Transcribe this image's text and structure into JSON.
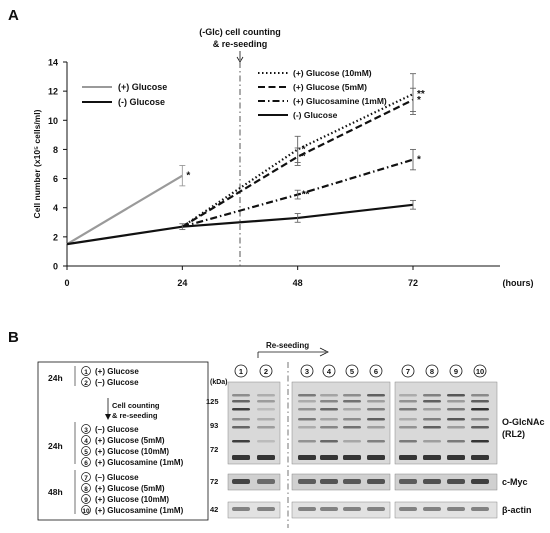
{
  "panel_a": {
    "label": "A",
    "annotation": {
      "line1": "(-Glc) cell counting",
      "line2": "& re-seeding"
    }
  },
  "chart_data": {
    "type": "line",
    "ylabel": "Cell number (x10⁵ cells/ml)",
    "x_unit": "(hours)",
    "x": [
      0,
      24,
      48,
      72
    ],
    "x_ticks": [
      "0",
      "24",
      "48",
      "72"
    ],
    "ylim": [
      0,
      14
    ],
    "y_ticks": [
      0,
      2,
      4,
      6,
      8,
      10,
      12,
      14
    ],
    "grid": false,
    "legend_left": [
      {
        "name": "(+) Glucose",
        "color": "#9a9a9a",
        "dash": "solid"
      },
      {
        "name": "(-) Glucose",
        "color": "#111111",
        "dash": "solid"
      }
    ],
    "legend_right": [
      {
        "name": "(+) Glucose (10mM)",
        "dash": "dot"
      },
      {
        "name": "(+) Glucose (5mM)",
        "dash": "dash"
      },
      {
        "name": "(+) Glucosamine (1mM)",
        "dash": "dashdot"
      },
      {
        "name": "(-) Glucose",
        "dash": "solid"
      }
    ],
    "series": [
      {
        "name": "(+) Glucose",
        "color": "#9a9a9a",
        "dash": "solid",
        "x": [
          0,
          24
        ],
        "y": [
          1.5,
          6.2
        ],
        "err": [
          0,
          0.7
        ],
        "sig": [
          "",
          "*"
        ]
      },
      {
        "name": "(+) Glucose (10mM)",
        "color": "#111111",
        "dash": "dot",
        "x": [
          24,
          48,
          72
        ],
        "y": [
          2.7,
          8.0,
          11.8
        ],
        "err": [
          0,
          0.9,
          1.4
        ],
        "sig": [
          "",
          "*",
          "**"
        ]
      },
      {
        "name": "(+) Glucose (5mM)",
        "color": "#111111",
        "dash": "dash",
        "x": [
          24,
          48,
          72
        ],
        "y": [
          2.7,
          7.5,
          11.4
        ],
        "err": [
          0,
          0.6,
          0.8
        ],
        "sig": [
          "",
          "*",
          "*"
        ]
      },
      {
        "name": "(+) Glucosamine (1mM)",
        "color": "#111111",
        "dash": "dashdot",
        "x": [
          24,
          48,
          72
        ],
        "y": [
          2.7,
          4.9,
          7.3
        ],
        "err": [
          0,
          0.3,
          0.7
        ],
        "sig": [
          "",
          "**",
          "*"
        ]
      },
      {
        "name": "(-) Glucose",
        "color": "#111111",
        "dash": "solid",
        "x": [
          0,
          24,
          48,
          72
        ],
        "y": [
          1.5,
          2.7,
          3.3,
          4.2
        ],
        "err": [
          0,
          0.2,
          0.3,
          0.3
        ],
        "sig": [
          "",
          "",
          "",
          ""
        ]
      }
    ]
  },
  "panel_b": {
    "label": "B",
    "legend": {
      "group1_time": "24h",
      "group1": [
        {
          "num": "1",
          "text": "(+) Glucose"
        },
        {
          "num": "2",
          "text": "(–) Glucose"
        }
      ],
      "step1": "Cell counting",
      "step2": "& re-seeding",
      "group2_time": "24h",
      "group2": [
        {
          "num": "3",
          "text": "(–) Glucose"
        },
        {
          "num": "4",
          "text": "(+) Glucose   (5mM)"
        },
        {
          "num": "5",
          "text": "(+) Glucose   (10mM)"
        },
        {
          "num": "6",
          "text": "(+) Glucosamine   (1mM)"
        }
      ],
      "group3_time": "48h",
      "group3": [
        {
          "num": "7",
          "text": "(–) Glucose"
        },
        {
          "num": "8",
          "text": "(+) Glucose   (5mM)"
        },
        {
          "num": "9",
          "text": "(+) Glucose   (10mM)"
        },
        {
          "num": "10",
          "text": "(+) Glucosamine   (1mM)"
        }
      ]
    },
    "blot": {
      "reseeding": "Re-seeding",
      "kda": "(kDa)",
      "lanes": [
        "1",
        "2",
        "3",
        "4",
        "5",
        "6",
        "7",
        "8",
        "9",
        "10"
      ],
      "markers": [
        "125",
        "93",
        "72",
        "72",
        "42"
      ],
      "labels": [
        "O-GlcNAc",
        "(RL2)",
        "c-Myc",
        "β-actin"
      ]
    }
  }
}
